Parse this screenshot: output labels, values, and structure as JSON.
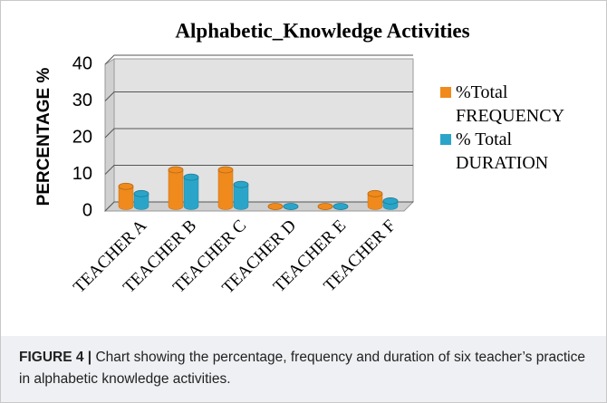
{
  "chart_data": {
    "type": "bar3d",
    "title": "Alphabetic_Knowledge Activities",
    "y_label": "PERCENTAGE %",
    "categories": [
      "TEACHER A",
      "TEACHER B",
      "TEACHER C",
      "TEACHER D",
      "TEACHER E",
      "TEACHER F"
    ],
    "series": [
      {
        "name": "%Total FREQUENCY",
        "color": "#f08a1c",
        "values": [
          5.5,
          10,
          10,
          0,
          0,
          3.5
        ]
      },
      {
        "name": "% Total DURATION",
        "color": "#2aa5c9",
        "values": [
          3.5,
          8,
          6,
          0,
          0,
          1.5
        ]
      }
    ],
    "ylim": [
      0,
      40
    ],
    "yticks": [
      0,
      10,
      20,
      30,
      40
    ],
    "grid": true,
    "legend": "right"
  },
  "caption": {
    "label": "FIGURE 4 |",
    "text": "Chart showing the percentage, frequency and duration of six teacher’s practice in alphabetic knowledge activities."
  }
}
